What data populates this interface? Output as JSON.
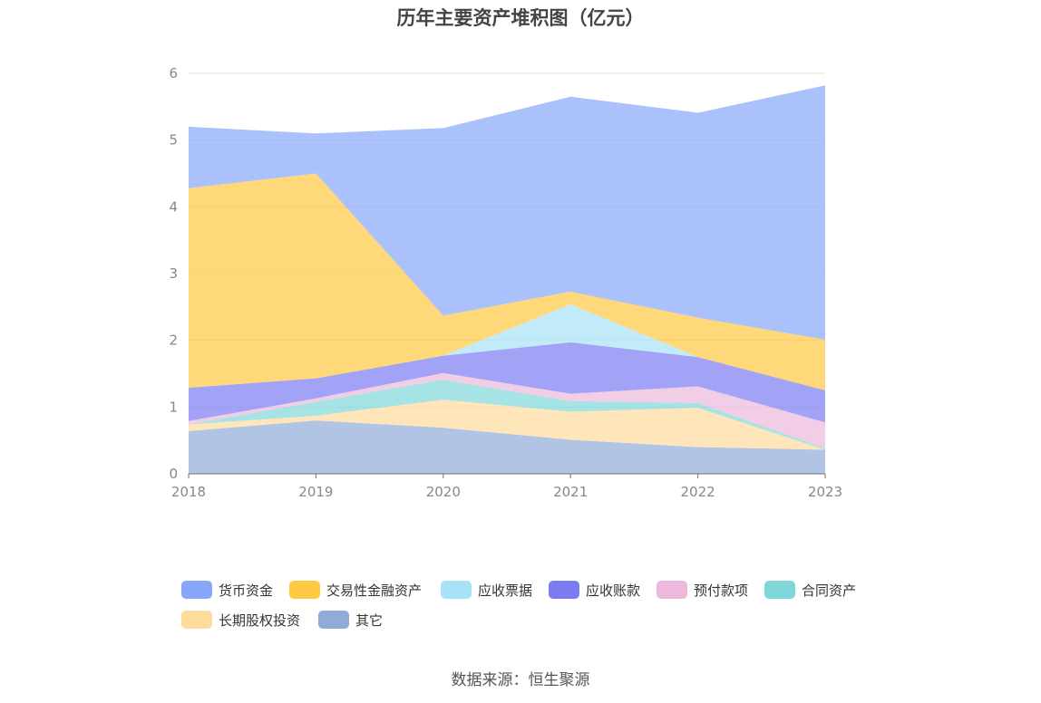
{
  "chart_data": {
    "type": "area",
    "stacked": true,
    "title": "历年主要资产堆积图（亿元）",
    "x": [
      "2018",
      "2019",
      "2020",
      "2021",
      "2022",
      "2023"
    ],
    "ylim": [
      0,
      6
    ],
    "yticks": [
      "0",
      "1",
      "2",
      "3",
      "4",
      "5",
      "6"
    ],
    "grid": true,
    "legend_position": "bottom",
    "series": [
      {
        "name": "其它",
        "color": "#90abd8",
        "values": [
          0.64,
          0.8,
          0.69,
          0.51,
          0.4,
          0.36
        ]
      },
      {
        "name": "长期股权投资",
        "color": "#ffdb9c",
        "values": [
          0.1,
          0.07,
          0.42,
          0.42,
          0.59,
          0.0
        ]
      },
      {
        "name": "合同资产",
        "color": "#7fd7d9",
        "values": [
          0.0,
          0.21,
          0.3,
          0.16,
          0.07,
          0.02
        ]
      },
      {
        "name": "预付款项",
        "color": "#edb8dc",
        "values": [
          0.05,
          0.05,
          0.1,
          0.11,
          0.25,
          0.39
        ]
      },
      {
        "name": "应收账款",
        "color": "#7b7cf2",
        "values": [
          0.5,
          0.3,
          0.26,
          0.77,
          0.44,
          0.48
        ]
      },
      {
        "name": "应收票据",
        "color": "#a8e2f8",
        "values": [
          0.0,
          0.0,
          0.0,
          0.57,
          0.0,
          0.0
        ]
      },
      {
        "name": "交易性金融资产",
        "color": "#ffc940",
        "values": [
          2.99,
          3.07,
          0.6,
          0.19,
          0.59,
          0.76
        ]
      },
      {
        "name": "货币资金",
        "color": "#87a7fa",
        "values": [
          0.92,
          0.6,
          2.81,
          2.92,
          3.07,
          3.81
        ]
      }
    ]
  },
  "legend": [
    {
      "label": "货币资金",
      "color": "#87a7fa"
    },
    {
      "label": "交易性金融资产",
      "color": "#ffc940"
    },
    {
      "label": "应收票据",
      "color": "#a8e2f8"
    },
    {
      "label": "应收账款",
      "color": "#7b7cf2"
    },
    {
      "label": "预付款项",
      "color": "#edb8dc"
    },
    {
      "label": "合同资产",
      "color": "#7fd7d9"
    },
    {
      "label": "长期股权投资",
      "color": "#ffdb9c"
    },
    {
      "label": "其它",
      "color": "#90abd8"
    }
  ],
  "source": "数据来源：恒生聚源"
}
